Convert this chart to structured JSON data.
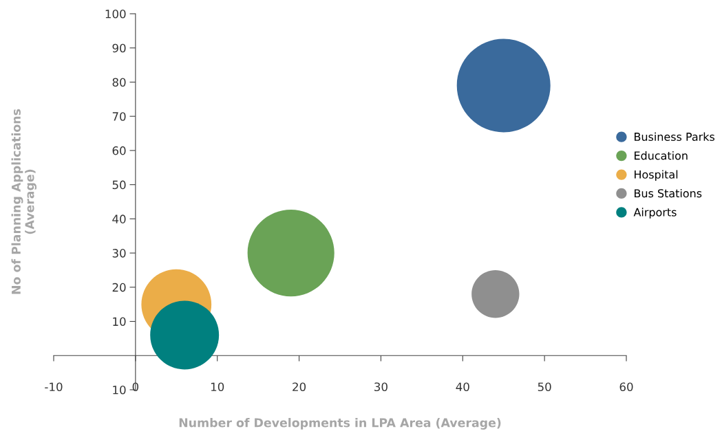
{
  "chart_data": {
    "type": "bubble",
    "xlabel": "Number of Developments in LPA Area (Average)",
    "ylabel": "No of Planning Applications\n(Average)",
    "xlim": [
      -10,
      60
    ],
    "xticks": [
      -10,
      0,
      10,
      20,
      30,
      40,
      50,
      60
    ],
    "ylim": [
      -10,
      100
    ],
    "yticks": [
      {
        "value": -10,
        "label": "10"
      },
      10,
      20,
      30,
      40,
      50,
      60,
      70,
      80,
      90,
      100
    ],
    "grid": false,
    "legend": "right",
    "marker": "circle",
    "series": [
      {
        "name": "Business Parks",
        "color": "#3a6a9c",
        "x": [
          45
        ],
        "values": [
          79
        ],
        "sizes": [
          1
        ]
      },
      {
        "name": "Education",
        "color": "#6aa356",
        "x": [
          19
        ],
        "values": [
          30
        ],
        "sizes": [
          0.86
        ]
      },
      {
        "name": "Hospital",
        "color": "#ebad48",
        "x": [
          5
        ],
        "values": [
          15
        ],
        "sizes": [
          0.56
        ]
      },
      {
        "name": "Bus Stations",
        "color": "#8f8f8f",
        "x": [
          44
        ],
        "values": [
          18
        ],
        "sizes": [
          0.26
        ]
      },
      {
        "name": "Airports",
        "color": "#00807f",
        "x": [
          6
        ],
        "values": [
          6
        ],
        "sizes": [
          0.54
        ]
      }
    ]
  }
}
